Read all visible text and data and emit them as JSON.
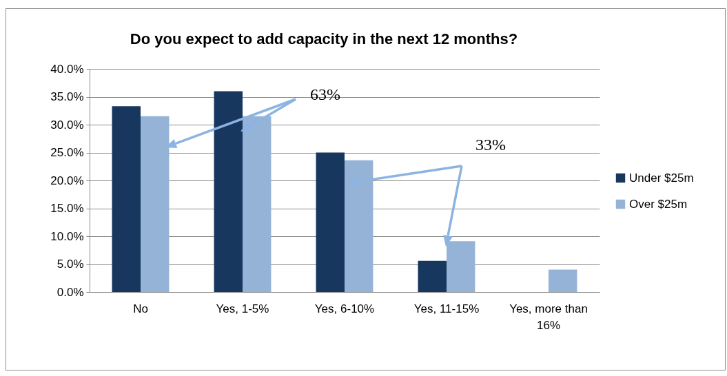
{
  "chart_data": {
    "type": "bar",
    "title": "Do you expect to add capacity in the next 12 months?",
    "categories": [
      "No",
      "Yes, 1-5%",
      "Yes, 6-10%",
      "Yes, 11-15%",
      "Yes, more than 16%"
    ],
    "series": [
      {
        "name": "Under $25m",
        "color": "#17375e",
        "values": [
          33.3,
          36.0,
          25.0,
          5.6,
          null
        ]
      },
      {
        "name": "Over $25m",
        "color": "#95b3d7",
        "values": [
          31.5,
          31.5,
          23.6,
          9.1,
          4.0
        ]
      }
    ],
    "ylim": [
      0,
      40
    ],
    "yticks": [
      {
        "value": 0,
        "label": "0.0%"
      },
      {
        "value": 5,
        "label": "5.0%"
      },
      {
        "value": 10,
        "label": "10.0%"
      },
      {
        "value": 15,
        "label": "15.0%"
      },
      {
        "value": 20,
        "label": "20.0%"
      },
      {
        "value": 25,
        "label": "25.0%"
      },
      {
        "value": 30,
        "label": "30.0%"
      },
      {
        "value": 35,
        "label": "35.0%"
      },
      {
        "value": 40,
        "label": "40.0%"
      }
    ],
    "grid": "y",
    "legend": "right",
    "annotations": [
      "63%",
      "33%"
    ]
  }
}
